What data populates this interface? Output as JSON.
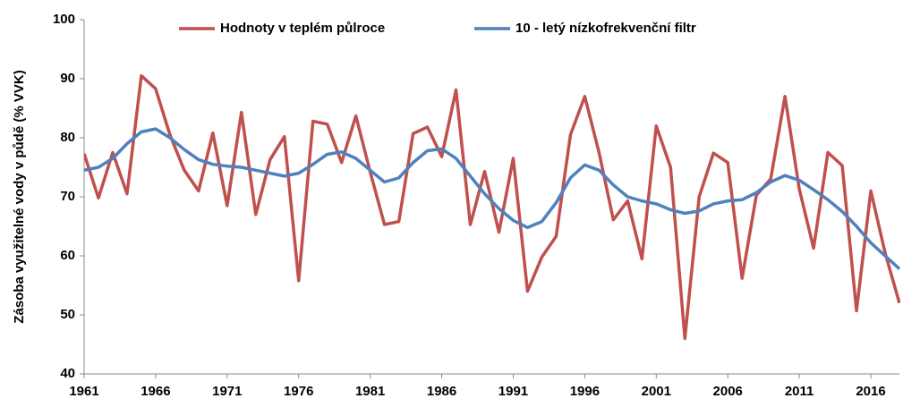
{
  "chart_data": {
    "type": "line",
    "ylabel": "Zásoba využitelné vody v půdě (% VVK)",
    "x": [
      1961,
      1962,
      1963,
      1964,
      1965,
      1966,
      1967,
      1968,
      1969,
      1970,
      1971,
      1972,
      1973,
      1974,
      1975,
      1976,
      1977,
      1978,
      1979,
      1980,
      1981,
      1982,
      1983,
      1984,
      1985,
      1986,
      1987,
      1988,
      1989,
      1990,
      1991,
      1992,
      1993,
      1994,
      1995,
      1996,
      1997,
      1998,
      1999,
      2000,
      2001,
      2002,
      2003,
      2004,
      2005,
      2006,
      2007,
      2008,
      2009,
      2010,
      2011,
      2012,
      2013,
      2014,
      2015,
      2016,
      2017,
      2018
    ],
    "series": [
      {
        "name": "Hodnoty v teplém půlroce",
        "color": "#c0504d",
        "values": [
          77.3,
          69.8,
          77.5,
          70.5,
          90.5,
          88.3,
          80.5,
          74.5,
          71,
          80.8,
          68.5,
          84.3,
          67,
          76.3,
          80.2,
          55.8,
          82.8,
          82.3,
          75.8,
          83.7,
          74.2,
          65.3,
          65.8,
          80.7,
          81.8,
          76.8,
          88.1,
          65.3,
          74.3,
          64,
          76.5,
          54,
          59.8,
          63.3,
          80.5,
          87,
          77.5,
          66.1,
          69.3,
          59.5,
          82,
          75,
          46,
          70,
          77.4,
          75.8,
          56.2,
          70.3,
          73,
          87,
          71.3,
          61.3,
          77.5,
          75.3,
          50.7,
          71,
          60.5,
          52
        ]
      },
      {
        "name": "10 - letý nízkofrekvenční filtr",
        "color": "#4f81bd",
        "values": [
          74.5,
          75,
          76.5,
          79,
          81,
          81.5,
          80,
          78,
          76.3,
          75.5,
          75.2,
          75,
          74.5,
          74,
          73.5,
          74,
          75.5,
          77.2,
          77.6,
          76.5,
          74.5,
          72.5,
          73.2,
          75.8,
          77.8,
          78.1,
          76.5,
          73.5,
          70.5,
          68,
          66,
          64.8,
          65.8,
          69,
          73.2,
          75.4,
          74.5,
          72,
          70,
          69.3,
          68.8,
          67.8,
          67.2,
          67.6,
          68.8,
          69.3,
          69.5,
          70.7,
          72.5,
          73.6,
          72.8,
          71.2,
          69.5,
          67.5,
          65,
          62.2,
          60,
          57.8
        ]
      }
    ],
    "xlim": [
      1961,
      2018
    ],
    "xticks": [
      1961,
      1966,
      1971,
      1976,
      1981,
      1986,
      1991,
      1996,
      2001,
      2006,
      2011,
      2016
    ],
    "ylim": [
      40,
      100
    ],
    "yticks": [
      40,
      50,
      60,
      70,
      80,
      90,
      100
    ],
    "grid": false,
    "legend": "top"
  }
}
